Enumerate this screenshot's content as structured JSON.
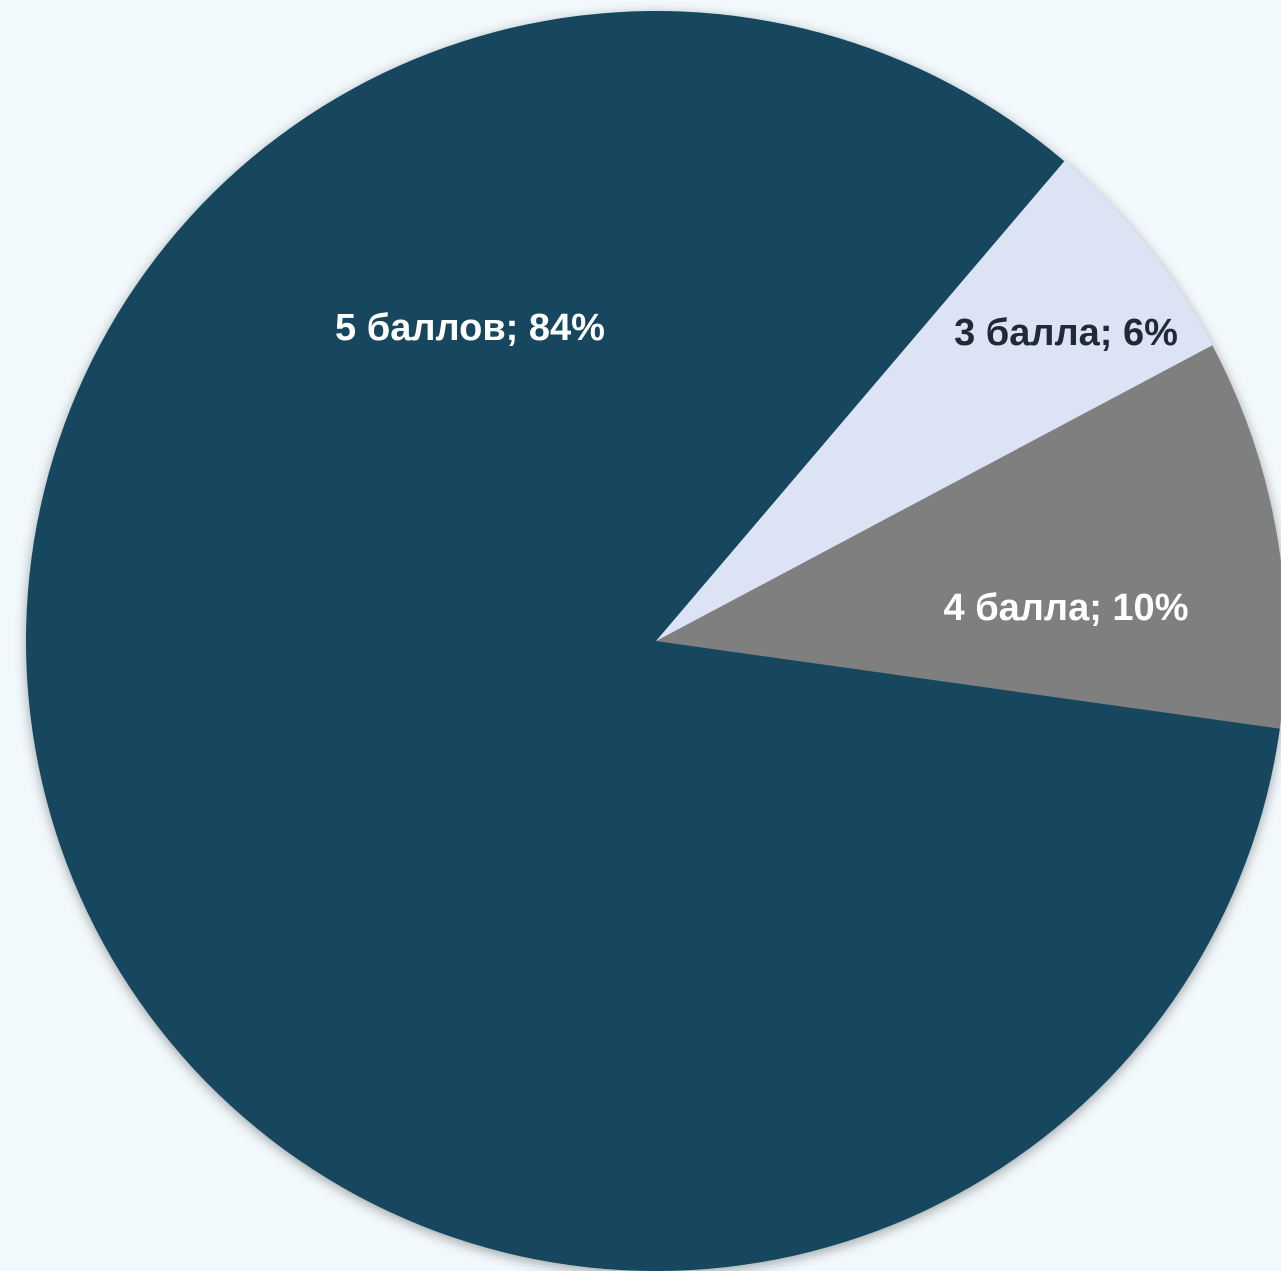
{
  "chart_data": {
    "type": "pie",
    "categories": [
      "5 баллов",
      "3 балла",
      "4 балла"
    ],
    "values": [
      84,
      6,
      10
    ],
    "unit": "%",
    "data_labels": [
      "5 баллов; 84%",
      "3 балла; 6%",
      "4 балла; 10%"
    ],
    "colors": [
      "#12475f",
      "#dbe3f4",
      "#7f7f7f"
    ],
    "label_colors": [
      "#ffffff",
      "#1f2a36",
      "#ffffff"
    ],
    "legend": "none",
    "title": ""
  },
  "background_color": "#f2f9fc"
}
